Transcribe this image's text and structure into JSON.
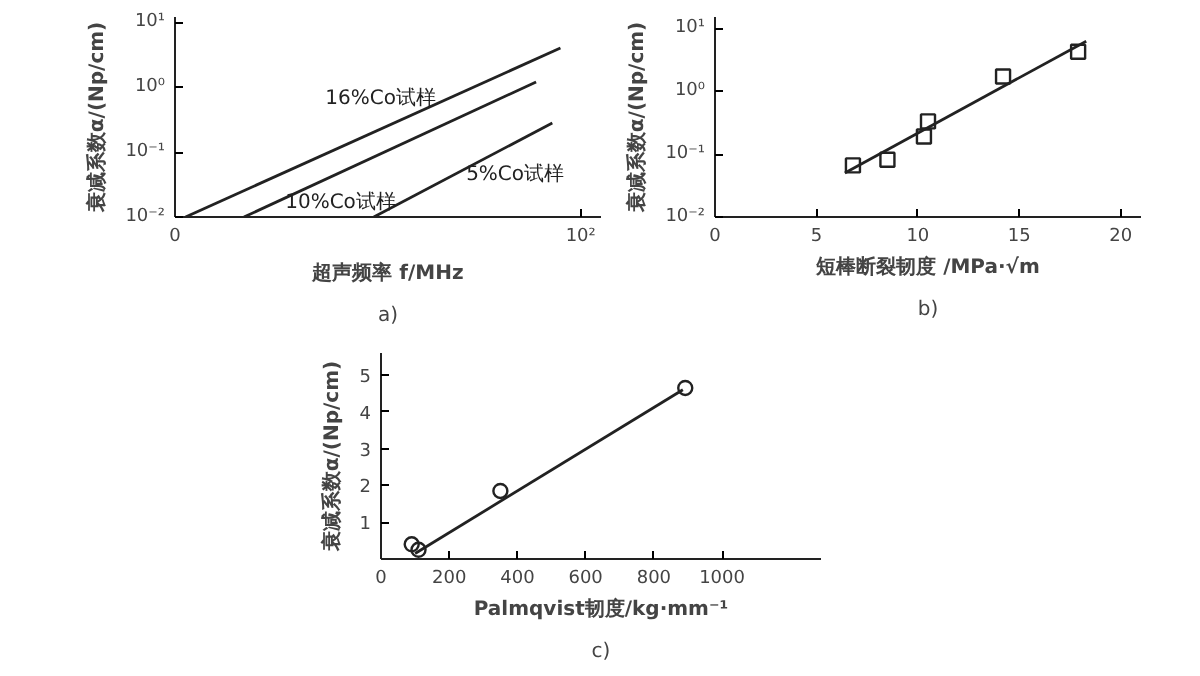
{
  "chart_data": [
    {
      "type": "line",
      "xlabel": "超声频率 f/MHz",
      "ylabel": "衰减系数α/(Np/cm)",
      "log": "y",
      "grid": false,
      "xlim": [
        0,
        105
      ],
      "ylim": [
        0.01,
        12
      ],
      "xticks": [
        0,
        {
          "value": 100,
          "label": "10²"
        }
      ],
      "yticks": [
        {
          "value": 0.01,
          "label": "10⁻²"
        },
        {
          "value": 0.1,
          "label": "10⁻¹"
        },
        {
          "value": 1,
          "label": "10⁰"
        },
        {
          "value": 10,
          "label": "10¹"
        }
      ],
      "annotations": [
        "a)"
      ],
      "series": [
        {
          "name": "16%Co试样",
          "color": "#222222",
          "x": [
            2.6,
            95
          ],
          "values": [
            0.01,
            4.0
          ]
        },
        {
          "name": "10%Co试样",
          "color": "#222222",
          "x": [
            17,
            89
          ],
          "values": [
            0.01,
            1.2
          ]
        },
        {
          "name": "5%Co试样",
          "color": "#222222",
          "x": [
            49,
            93
          ],
          "values": [
            0.01,
            0.28
          ]
        }
      ]
    },
    {
      "type": "scatter",
      "xlabel": "短棒断裂韧度 /MPa·√m",
      "ylabel": "衰减系数α/(Np/cm)",
      "log": "y",
      "grid": false,
      "xlim": [
        0,
        21
      ],
      "ylim": [
        0.01,
        15
      ],
      "xticks": [
        0,
        5,
        10,
        15,
        20
      ],
      "yticks": [
        {
          "value": 0.01,
          "label": "10⁻²"
        },
        {
          "value": 0.1,
          "label": "10⁻¹"
        },
        {
          "value": 1,
          "label": "10⁰"
        },
        {
          "value": 10,
          "label": "10¹"
        }
      ],
      "annotations": [
        "b)"
      ],
      "series": [
        {
          "marker": "square",
          "color": "#222222",
          "x": [
            6.8,
            8.5,
            10.3,
            10.5,
            14.2,
            17.9
          ],
          "values": [
            0.066,
            0.081,
            0.19,
            0.33,
            1.7,
            4.2
          ]
        },
        {
          "type": "line",
          "color": "#222222",
          "x": [
            6.4,
            18.3
          ],
          "values": [
            0.05,
            6.2
          ]
        }
      ]
    },
    {
      "type": "scatter",
      "xlabel": "Palmqvist韧度/kg·mm⁻¹",
      "ylabel": "衰减系数α/(Np/cm)",
      "grid": false,
      "xlim": [
        0,
        1290
      ],
      "ylim": [
        0,
        5.6
      ],
      "xticks": [
        0,
        200,
        400,
        600,
        800,
        1000
      ],
      "yticks": [
        1,
        2,
        3,
        4,
        5
      ],
      "annotations": [
        "c)"
      ],
      "series": [
        {
          "marker": "circle",
          "color": "#222222",
          "x": [
            90,
            110,
            350,
            892
          ],
          "values": [
            0.4,
            0.25,
            1.85,
            4.65
          ]
        },
        {
          "type": "line",
          "color": "#222222",
          "x": [
            100,
            885
          ],
          "values": [
            0.15,
            4.6
          ]
        }
      ]
    }
  ]
}
